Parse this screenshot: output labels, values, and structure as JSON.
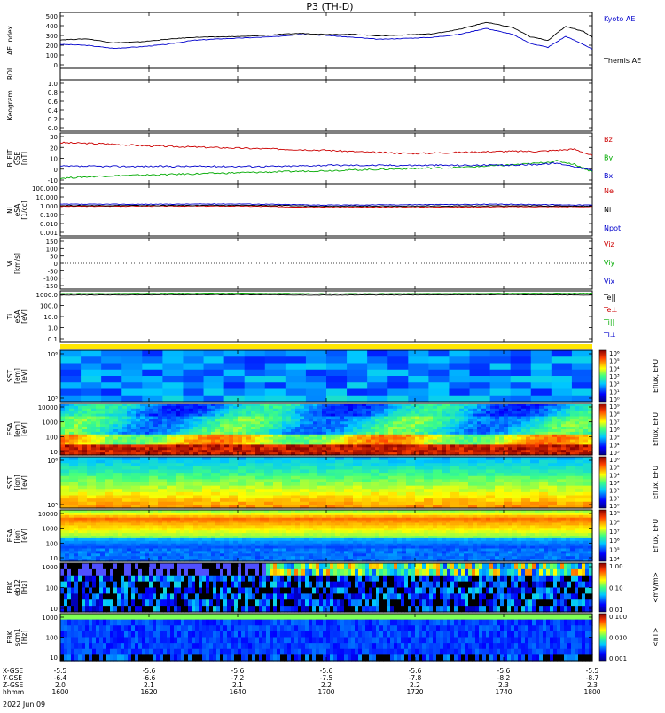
{
  "title": "P3 (TH-D)",
  "date_label": "2022 Jun 09",
  "x_axis": {
    "ticks": [
      "1600",
      "1620",
      "1640",
      "1700",
      "1720",
      "1740",
      "1800"
    ],
    "row_labels": [
      "X-GSE",
      "Y-GSE",
      "Z-GSE",
      "hhmm"
    ],
    "rows": [
      [
        "-5.5",
        "-5.6",
        "-5.6",
        "-5.6",
        "-5.6",
        "-5.6",
        "-5.5"
      ],
      [
        "-6.4",
        "-6.6",
        "-7.2",
        "-7.5",
        "-7.8",
        "-8.2",
        "-8.7"
      ],
      [
        "2.0",
        "2.1",
        "2.1",
        "2.2",
        "2.2",
        "2.3",
        "2.3"
      ]
    ]
  },
  "colors": {
    "black": "#000000",
    "blue": "#0000cc",
    "red": "#cc0000",
    "green": "#00aa00",
    "cyan": "#00b0b0"
  },
  "chart_data": [
    {
      "id": "ae",
      "type": "line",
      "ylabel": "AE Index",
      "y_ticks": [
        "500",
        "400",
        "300",
        "200",
        "100",
        "0"
      ],
      "ylim": [
        -40,
        520
      ],
      "x": [
        1600,
        1606,
        1612,
        1618,
        1624,
        1630,
        1636,
        1642,
        1648,
        1654,
        1700,
        1706,
        1712,
        1718,
        1724,
        1730,
        1736,
        1742,
        1746,
        1750,
        1754,
        1758,
        1800
      ],
      "series": [
        {
          "name": "Kyoto AE",
          "color": "#0000cc",
          "values": [
            200,
            190,
            160,
            175,
            200,
            240,
            255,
            265,
            275,
            300,
            290,
            270,
            250,
            260,
            270,
            300,
            360,
            300,
            210,
            170,
            280,
            200,
            150
          ]
        },
        {
          "name": "Themis AE",
          "color": "#000000",
          "values": [
            245,
            255,
            215,
            225,
            250,
            270,
            275,
            280,
            295,
            310,
            300,
            300,
            285,
            295,
            305,
            350,
            420,
            370,
            275,
            240,
            380,
            330,
            270
          ]
        }
      ],
      "legend": [
        "Kyoto AE",
        "Themis AE"
      ]
    },
    {
      "id": "roi",
      "type": "line",
      "ylabel": "ROI",
      "note": "dotted baseline"
    },
    {
      "id": "keogram",
      "type": "line",
      "ylabel": "Keogram",
      "y_ticks": [
        "1.0",
        "0.8",
        "0.6",
        "0.4",
        "0.2",
        "0.0"
      ],
      "ylim": [
        0,
        1
      ]
    },
    {
      "id": "bfit",
      "type": "line",
      "ylabel": [
        "B_FIT",
        "GSE",
        "[nT]"
      ],
      "y_ticks": [
        "30",
        "20",
        "10",
        "0",
        "-10"
      ],
      "ylim": [
        -14,
        33
      ],
      "x": [
        1600,
        1610,
        1620,
        1630,
        1640,
        1650,
        1700,
        1710,
        1720,
        1730,
        1740,
        1748,
        1752,
        1756,
        1800
      ],
      "series": [
        {
          "name": "Bz",
          "color": "#cc0000",
          "values": [
            24,
            23,
            21,
            20,
            19,
            18,
            17,
            15,
            14,
            15,
            16,
            16,
            17,
            18,
            12
          ]
        },
        {
          "name": "By",
          "color": "#00aa00",
          "values": [
            -9,
            -7,
            -6,
            -5,
            -4,
            -3,
            -2,
            -1,
            0,
            1,
            3,
            5,
            7,
            4,
            -3
          ]
        },
        {
          "name": "Bx",
          "color": "#0000cc",
          "values": [
            2,
            2,
            2,
            2,
            2,
            2,
            3,
            3,
            3,
            3,
            3,
            4,
            5,
            2,
            -2
          ]
        }
      ],
      "legend": [
        "Bz",
        "By",
        "Bx"
      ]
    },
    {
      "id": "ni",
      "type": "line",
      "ylabel": [
        "Ni",
        "eSA",
        "[1/cc]"
      ],
      "y_ticks": [
        "100.000",
        "10.000",
        "1.000",
        "0.100",
        "0.010",
        "0.001"
      ],
      "ylim": [
        0.001,
        100
      ],
      "scale": "log",
      "x": [
        1600,
        1620,
        1640,
        1700,
        1720,
        1740,
        1800
      ],
      "series": [
        {
          "name": "Ne",
          "color": "#cc0000",
          "values": [
            0.75,
            0.8,
            0.8,
            0.6,
            0.6,
            0.7,
            0.7
          ]
        },
        {
          "name": "Ni",
          "color": "#000000",
          "values": [
            0.9,
            0.9,
            0.95,
            0.8,
            0.8,
            0.85,
            0.8
          ]
        },
        {
          "name": "Npot",
          "color": "#0000cc",
          "values": [
            1.2,
            1.2,
            1.3,
            1.0,
            1.1,
            1.2,
            1.0
          ]
        }
      ],
      "legend": [
        "Ne",
        "Ni",
        "Npot"
      ]
    },
    {
      "id": "vi",
      "type": "line",
      "ylabel": [
        "Vi",
        "[km/s]"
      ],
      "y_ticks": [
        "150",
        "100",
        "50",
        "0",
        "-50",
        "-100",
        "-150"
      ],
      "ylim": [
        -170,
        170
      ],
      "legend": [
        "Viz",
        "Viy",
        "Vix"
      ]
    },
    {
      "id": "ti",
      "type": "line",
      "ylabel": [
        "Ti",
        "eSA",
        "[eV]"
      ],
      "y_ticks": [
        "1000.0",
        "100.0",
        "10.0",
        "1.0",
        "0.1"
      ],
      "ylim": [
        0.07,
        5000
      ],
      "scale": "log",
      "x": [
        1600,
        1620,
        1640,
        1700,
        1720,
        1740,
        1800
      ],
      "series": [
        {
          "name": "Te||",
          "color": "#000000",
          "values": [
            2000,
            2100,
            2200,
            2000,
            2100,
            2200,
            2000
          ]
        },
        {
          "name": "Ti||",
          "color": "#00aa00",
          "values": [
            2800,
            2900,
            3000,
            2700,
            2800,
            2900,
            3000
          ]
        }
      ],
      "legend": [
        "Te||",
        "Te⊥",
        "Ti||",
        "Ti⊥"
      ],
      "legend_colors": [
        "#000000",
        "#cc0000",
        "#00aa00",
        "#0000cc"
      ]
    },
    {
      "id": "sst_e",
      "type": "heatmap",
      "ylabel": [
        "SST",
        "[em]",
        "[eV]"
      ],
      "y_ticks": [
        "10^6",
        "10^5"
      ],
      "colorbar_label": "Eflux, EFU",
      "colorbar_ticks": [
        "10^6",
        "10^5",
        "10^4",
        "10^3",
        "10^2",
        "10^1",
        "10^0"
      ]
    },
    {
      "id": "esa_e",
      "type": "heatmap",
      "ylabel": [
        "ESA",
        "[em]",
        "[eV]"
      ],
      "y_ticks": [
        "10000",
        "1000",
        "100",
        "10"
      ],
      "colorbar_label": "Eflux, EFU",
      "colorbar_ticks": [
        "10^9",
        "10^8",
        "10^7",
        "10^6",
        "10^5",
        "10^4",
        "10^3"
      ]
    },
    {
      "id": "sst_i",
      "type": "heatmap",
      "ylabel": [
        "SST",
        "[ion]",
        "[eV]"
      ],
      "y_ticks": [
        "10^6",
        "10^5"
      ],
      "colorbar_label": "Eflux, EFU",
      "colorbar_ticks": [
        "10^6",
        "10^5",
        "10^4",
        "10^3",
        "10^2",
        "10^1",
        "10^0"
      ]
    },
    {
      "id": "esa_i",
      "type": "heatmap",
      "ylabel": [
        "ESA",
        "[ion]",
        "[eV]"
      ],
      "y_ticks": [
        "10000",
        "1000",
        "100",
        "10"
      ],
      "colorbar_label": "Eflux, EFU",
      "colorbar_ticks": [
        "10^9",
        "10^8",
        "10^7",
        "10^6",
        "10^5",
        "10^4"
      ]
    },
    {
      "id": "fbk_e",
      "type": "heatmap",
      "ylabel": [
        "FBK",
        "eb12",
        "[Hz]"
      ],
      "y_ticks": [
        "1000",
        "100",
        "10"
      ],
      "colorbar_label": "<mV/m>",
      "colorbar_ticks": [
        "1.00",
        "0.10",
        "0.01"
      ]
    },
    {
      "id": "fbk_b",
      "type": "heatmap",
      "ylabel": [
        "FBK",
        "scm1",
        "[Hz]"
      ],
      "y_ticks": [
        "1000",
        "100",
        "10"
      ],
      "colorbar_label": "<nT>",
      "colorbar_ticks": [
        "0.100",
        "0.010",
        "0.001"
      ]
    }
  ]
}
